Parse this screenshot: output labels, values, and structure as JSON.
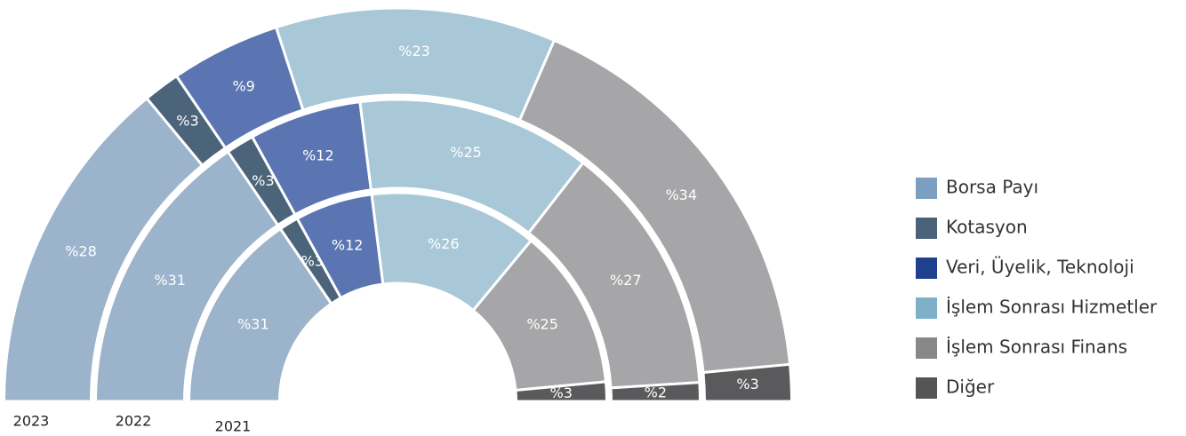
{
  "chart_data": {
    "type": "nested-semi-donut",
    "categories": [
      "Borsa Payı",
      "Kotasyon",
      "Veri, Üyelik, Teknoloji",
      "İşlem Sonrası Hizmetler",
      "İşlem Sonrası Finans",
      "Diğer"
    ],
    "colors": [
      "#9cb3cc",
      "#4c6479",
      "#5b74b2",
      "#a8c8d8",
      "#a6a6a8",
      "#5a5a5c"
    ],
    "legend_colors": [
      "#7b9fc0",
      "#4a6378",
      "#1f3f8f",
      "#80b0c8",
      "#88888b",
      "#555557"
    ],
    "series": [
      {
        "name": "2021",
        "values": [
          31,
          3,
          12,
          26,
          25,
          3
        ],
        "value_labels": [
          "%31",
          "%3",
          "%12",
          "%26",
          "%25",
          "%3"
        ]
      },
      {
        "name": "2022",
        "values": [
          31,
          3,
          12,
          25,
          27,
          2
        ],
        "value_labels": [
          "%31",
          "%3",
          "%12",
          "%25",
          "%27",
          "%2"
        ]
      },
      {
        "name": "2023",
        "values": [
          28,
          3,
          9,
          23,
          34,
          3
        ],
        "value_labels": [
          "%28",
          "%3",
          "%9",
          "%23",
          "%34",
          "%3"
        ]
      }
    ],
    "legend": "right"
  }
}
